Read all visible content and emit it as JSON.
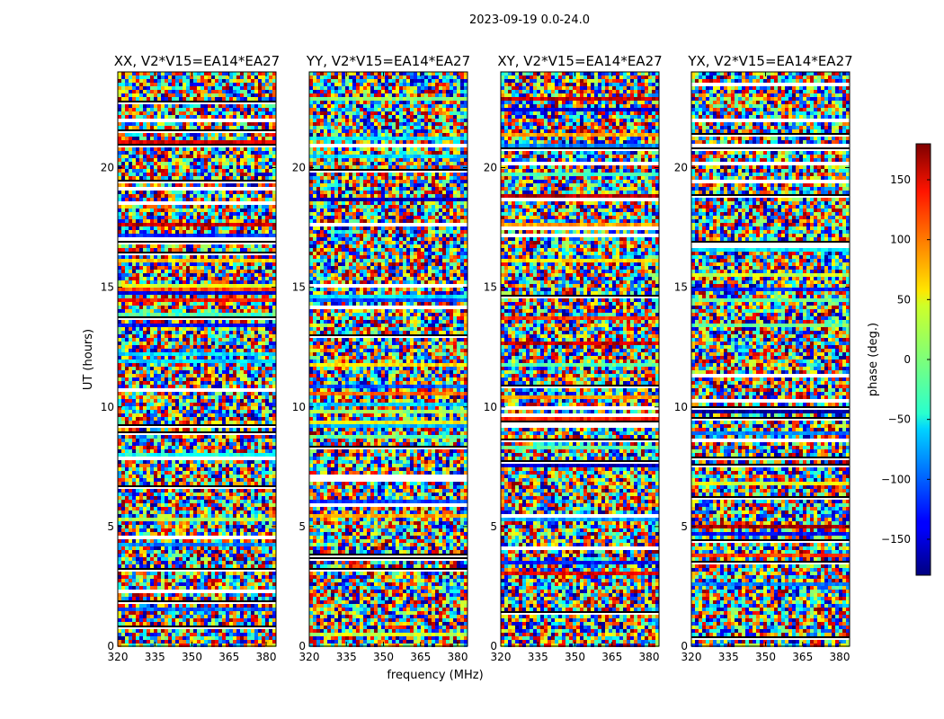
{
  "chart_data": {
    "type": "heatmap",
    "title": "2023-09-19 0.0-24.0",
    "xlabel": "frequency (MHz)",
    "ylabel": "UT (hours)",
    "xlim": [
      320,
      384
    ],
    "ylim": [
      0,
      24
    ],
    "xticks": [
      "320",
      "335",
      "350",
      "365",
      "380"
    ],
    "yticks": [
      "0",
      "5",
      "10",
      "15",
      "20"
    ],
    "panels": [
      {
        "title": "XX, V2*V15=EA14*EA27"
      },
      {
        "title": "YY, V2*V15=EA14*EA27"
      },
      {
        "title": "XY, V2*V15=EA14*EA27"
      },
      {
        "title": "YX, V2*V15=EA14*EA27"
      }
    ],
    "colorbar": {
      "label": "phase (deg.)",
      "range": [
        -180,
        180
      ],
      "ticks": [
        "−150",
        "−100",
        "−50",
        "0",
        "50",
        "100",
        "150"
      ]
    }
  }
}
